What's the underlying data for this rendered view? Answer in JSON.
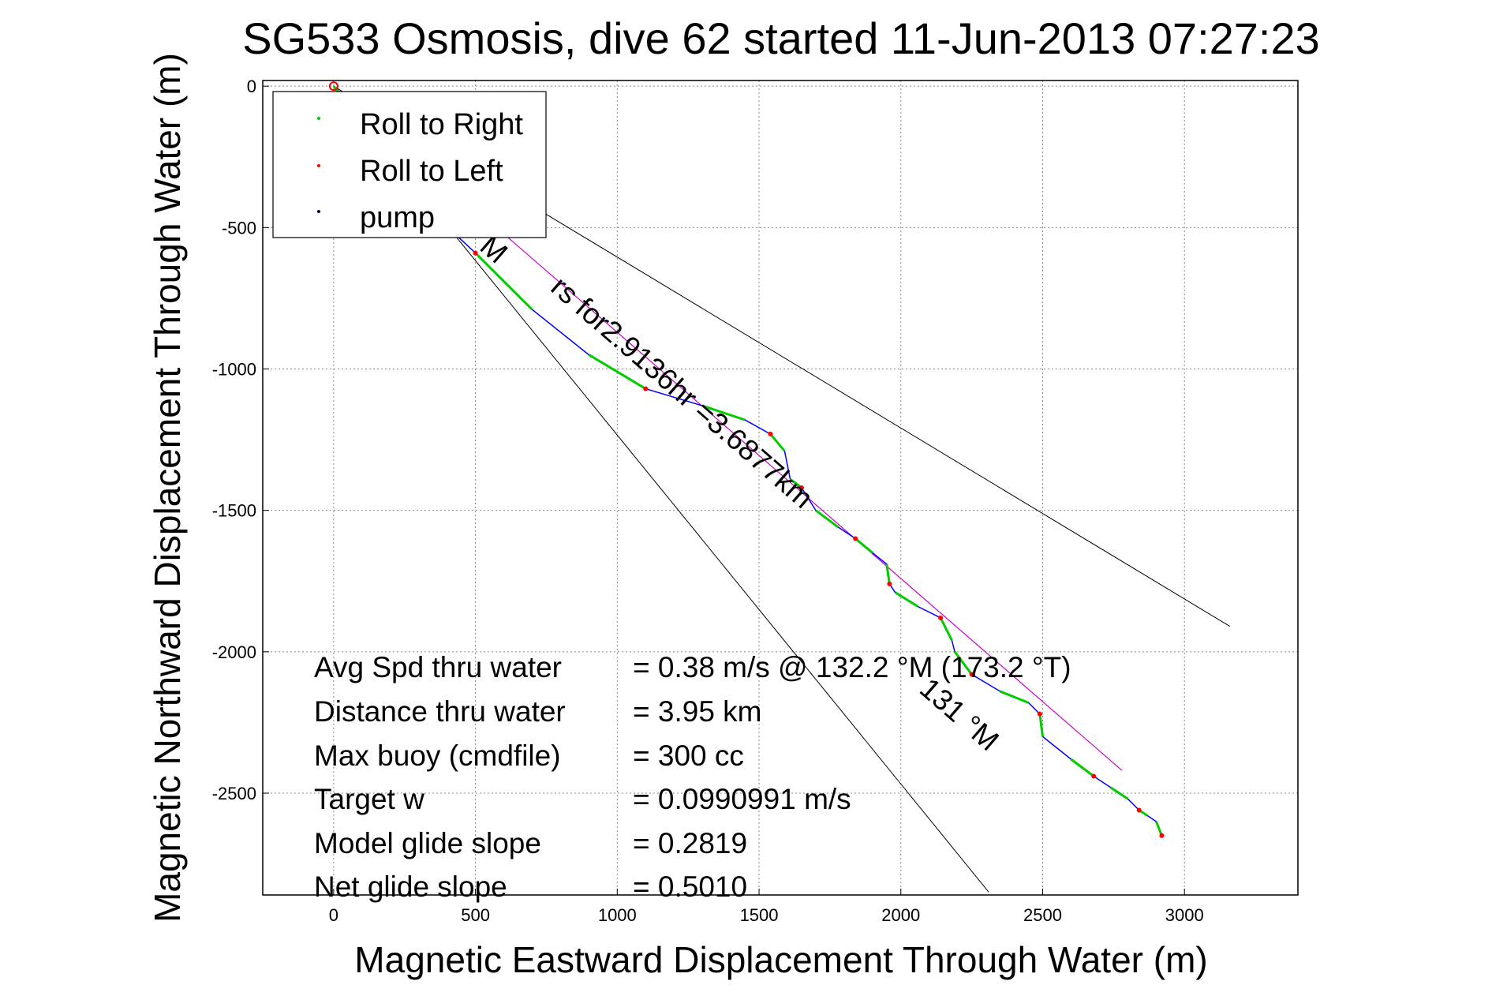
{
  "chart_data": {
    "type": "line",
    "title": "SG533 Osmosis, dive 62 started 11-Jun-2013 07:27:23",
    "xlabel": "Magnetic Eastward Displacement Through Water (m)",
    "ylabel": "Magnetic Northward Displacement Through Water (m)",
    "xlim": [
      -250,
      3400
    ],
    "ylim": [
      -2860,
      20
    ],
    "xticks": [
      0,
      500,
      1000,
      1500,
      2000,
      2500,
      3000
    ],
    "yticks": [
      0,
      -500,
      -1000,
      -1500,
      -2000,
      -2500
    ],
    "grid": true,
    "legend_position": "top-left",
    "legend": [
      {
        "label": "Roll to Right",
        "color": "#00cc00"
      },
      {
        "label": "Roll to Left",
        "color": "#ff0000"
      },
      {
        "label": "pump",
        "color": "#000060"
      }
    ],
    "colors": {
      "track": "#0000ff",
      "roll_right": "#00cc00",
      "roll_left": "#ff0000",
      "pump": "#000060",
      "heading_line": "#cc00cc",
      "cone_lines": "#000000"
    },
    "track": {
      "x": [
        0,
        80,
        200,
        350,
        500,
        700,
        900,
        1100,
        1300,
        1450,
        1540,
        1590,
        1610,
        1650,
        1700,
        1780,
        1840,
        1900,
        1950,
        1960,
        1980,
        2060,
        2140,
        2180,
        2190,
        2250,
        2350,
        2450,
        2490,
        2500,
        2600,
        2680,
        2740,
        2800,
        2840,
        2870,
        2900,
        2920
      ],
      "y": [
        0,
        -100,
        -260,
        -450,
        -590,
        -790,
        -950,
        -1070,
        -1130,
        -1180,
        -1230,
        -1290,
        -1390,
        -1420,
        -1500,
        -1560,
        -1600,
        -1650,
        -1690,
        -1760,
        -1790,
        -1840,
        -1880,
        -1960,
        -2000,
        -2080,
        -2140,
        -2180,
        -2220,
        -2300,
        -2380,
        -2440,
        -2480,
        -2520,
        -2560,
        -2580,
        -2600,
        -2650
      ]
    },
    "heading_line": {
      "x": [
        0,
        2780
      ],
      "y": [
        0,
        -2420
      ]
    },
    "cone_lines": [
      {
        "x": [
          0,
          3160
        ],
        "y": [
          0,
          -1910
        ]
      },
      {
        "x": [
          0,
          2310
        ],
        "y": [
          0,
          -2850
        ]
      }
    ],
    "annotations": [
      {
        "text": "rs for2.9136hr =3.6877km",
        "x": 760,
        "y": -720,
        "angle": 41
      },
      {
        "text": "M",
        "x": 510,
        "y": -575,
        "angle": 41
      },
      {
        "text": "131 °M",
        "x": 2060,
        "y": -2140,
        "angle": 41
      }
    ],
    "stats": [
      {
        "label": "Avg Spd thru water",
        "value": "=  0.38 m/s @ 132.2 °M (173.2 °T)"
      },
      {
        "label": "Distance thru water",
        "value": "=  3.95 km"
      },
      {
        "label": "Max buoy (cmdfile)",
        "value": "= 300 cc"
      },
      {
        "label": "Target w",
        "value": "= 0.0990991 m/s"
      },
      {
        "label": "Model glide slope",
        "value": "= 0.2819"
      },
      {
        "label": "Net glide slope",
        "value": "= 0.5010"
      }
    ]
  }
}
